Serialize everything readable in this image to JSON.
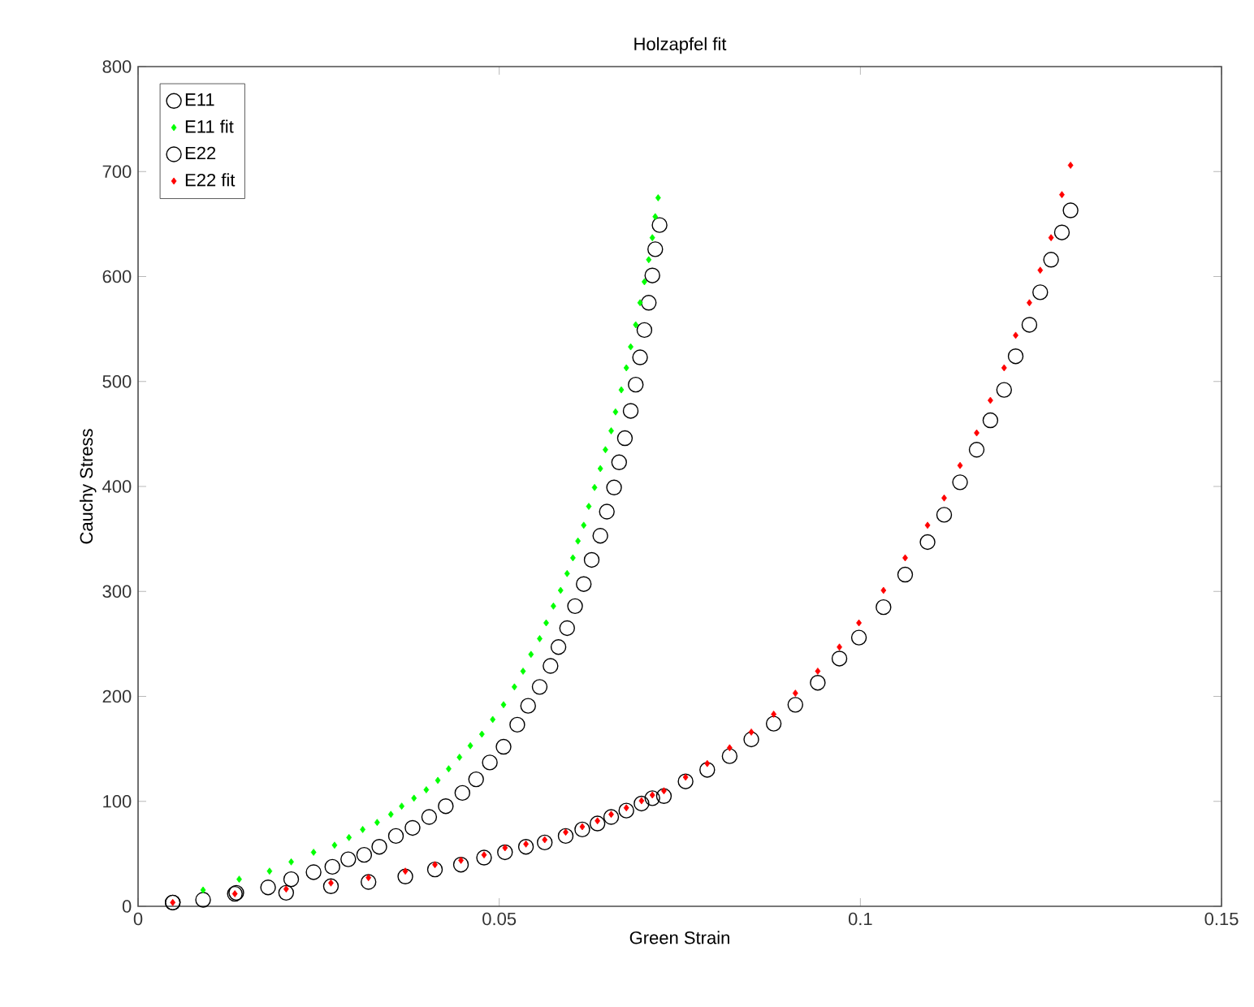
{
  "chart_data": {
    "type": "scatter",
    "title": "Holzapfel fit",
    "xlabel": "Green Strain",
    "ylabel": "Cauchy Stress",
    "xlim": [
      0,
      0.15
    ],
    "ylim": [
      0,
      800
    ],
    "xticks": [
      0,
      0.05,
      0.1,
      0.15
    ],
    "yticks": [
      0,
      100,
      200,
      300,
      400,
      500,
      600,
      700,
      800
    ],
    "legend": "top left",
    "grid": false,
    "series": [
      {
        "name": "E11",
        "color": "#000000",
        "marker": "circle",
        "x": [
          0.0048,
          0.009,
          0.0136,
          0.018,
          0.0212,
          0.0243,
          0.0269,
          0.0291,
          0.0313,
          0.0334,
          0.0357,
          0.038,
          0.0403,
          0.0426,
          0.0449,
          0.0468,
          0.0487,
          0.0506,
          0.0525,
          0.054,
          0.0556,
          0.0571,
          0.0582,
          0.0594,
          0.0605,
          0.0617,
          0.0628,
          0.064,
          0.0649,
          0.0659,
          0.0666,
          0.0674,
          0.0682,
          0.0689,
          0.0695,
          0.0701,
          0.0707,
          0.0712,
          0.0716,
          0.0722
        ],
        "values": [
          3.6,
          6.2,
          12.9,
          18,
          25.8,
          32.5,
          37.6,
          44.8,
          49,
          56.7,
          67,
          74.7,
          85.1,
          95.4,
          108,
          121,
          137,
          152,
          173,
          191,
          209,
          229,
          247,
          265,
          286,
          307,
          330,
          353,
          376,
          399,
          423,
          446,
          472,
          497,
          523,
          549,
          575,
          601,
          626,
          649
        ]
      },
      {
        "name": "E11 fit",
        "color": "#00ff00",
        "marker": "diamond",
        "x": [
          0.009,
          0.014,
          0.0182,
          0.0212,
          0.0243,
          0.0272,
          0.0292,
          0.0311,
          0.0331,
          0.035,
          0.0365,
          0.0382,
          0.0399,
          0.0415,
          0.043,
          0.0445,
          0.046,
          0.0476,
          0.0491,
          0.0506,
          0.0521,
          0.0533,
          0.0544,
          0.0556,
          0.0565,
          0.0575,
          0.0585,
          0.0594,
          0.0602,
          0.0609,
          0.0617,
          0.0624,
          0.0632,
          0.064,
          0.0647,
          0.0655,
          0.0661,
          0.0669,
          0.0676,
          0.0682,
          0.0689,
          0.0695,
          0.0701,
          0.0707,
          0.0712,
          0.0716,
          0.072
        ],
        "values": [
          15.5,
          25.8,
          33.5,
          42.3,
          51.5,
          58.2,
          65.5,
          73.2,
          79.9,
          87.6,
          95.4,
          103,
          111,
          120,
          131,
          142,
          153,
          164,
          178,
          192,
          209,
          224,
          240,
          255,
          270,
          286,
          301,
          317,
          332,
          348,
          363,
          381,
          399,
          417,
          435,
          453,
          471,
          492,
          513,
          533,
          554,
          575,
          595,
          616,
          637,
          657,
          675
        ]
      },
      {
        "name": "E22",
        "color": "#000000",
        "marker": "circle",
        "x": [
          0.0048,
          0.0134,
          0.0205,
          0.0267,
          0.0319,
          0.037,
          0.0411,
          0.0447,
          0.0479,
          0.0508,
          0.0537,
          0.0563,
          0.0592,
          0.0615,
          0.0636,
          0.0655,
          0.0676,
          0.0697,
          0.0712,
          0.0728,
          0.0758,
          0.0788,
          0.0819,
          0.0849,
          0.088,
          0.091,
          0.0941,
          0.0971,
          0.0998,
          0.1032,
          0.1062,
          0.1093,
          0.1116,
          0.1138,
          0.1161,
          0.118,
          0.1199,
          0.1215,
          0.1234,
          0.1249,
          0.1264,
          0.1279,
          0.1291
        ],
        "values": [
          3.6,
          11.9,
          12.9,
          19.1,
          23.2,
          28.4,
          35.1,
          39.7,
          46.4,
          51.5,
          56.7,
          60.8,
          67,
          73.2,
          78.9,
          85.1,
          91.2,
          97.9,
          103,
          105,
          119,
          130,
          143,
          159,
          174,
          192,
          213,
          236,
          256,
          285,
          316,
          347,
          373,
          404,
          435,
          463,
          492,
          524,
          554,
          585,
          616,
          642,
          663
        ]
      },
      {
        "name": "E22 fit",
        "color": "#ff0000",
        "marker": "diamond",
        "x": [
          0.0048,
          0.0134,
          0.0205,
          0.0267,
          0.0319,
          0.037,
          0.0411,
          0.0447,
          0.0479,
          0.0508,
          0.0537,
          0.0563,
          0.0592,
          0.0615,
          0.0636,
          0.0655,
          0.0676,
          0.0697,
          0.0712,
          0.0728,
          0.0758,
          0.0788,
          0.0819,
          0.0849,
          0.088,
          0.091,
          0.0941,
          0.0971,
          0.0998,
          0.1032,
          0.1062,
          0.1093,
          0.1116,
          0.1138,
          0.1161,
          0.118,
          0.1199,
          0.1215,
          0.1234,
          0.1249,
          0.1264,
          0.1279,
          0.1291
        ],
        "values": [
          3.6,
          11.9,
          16.5,
          22.2,
          27.3,
          33.5,
          39.7,
          43.8,
          49,
          55.7,
          59.3,
          63.4,
          70.6,
          75.8,
          81.4,
          87.6,
          93.8,
          100.5,
          106,
          110,
          123,
          136,
          151,
          166,
          183,
          203,
          224,
          247,
          270,
          301,
          332,
          363,
          389,
          420,
          451,
          482,
          513,
          544,
          575,
          606,
          637,
          678,
          706
        ]
      }
    ]
  }
}
